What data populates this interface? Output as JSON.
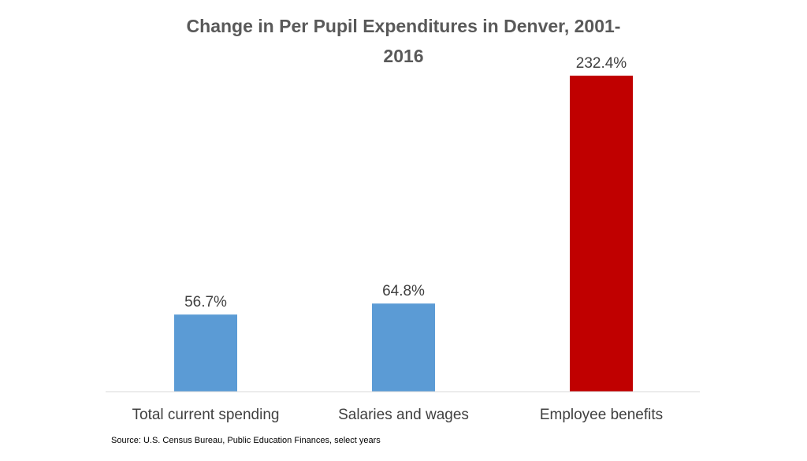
{
  "chart_data": {
    "type": "bar",
    "title_lines": [
      "Change in Per Pupil Expenditures in Denver, 2001-",
      "2016"
    ],
    "categories": [
      "Total current spending",
      "Salaries and wages",
      "Employee benefits"
    ],
    "values": [
      56.7,
      64.8,
      232.4
    ],
    "value_labels": [
      "56.7%",
      "64.8%",
      "232.4%"
    ],
    "colors": [
      "#5b9bd5",
      "#5b9bd5",
      "#c00000"
    ],
    "ylim": [
      0,
      250
    ],
    "grid": false,
    "legend": "none"
  },
  "source": "Source: U.S. Census Bureau, Public Education Finances, select years",
  "styles": {
    "axis_color": "#d9d9d9",
    "label_color": "#404040"
  }
}
